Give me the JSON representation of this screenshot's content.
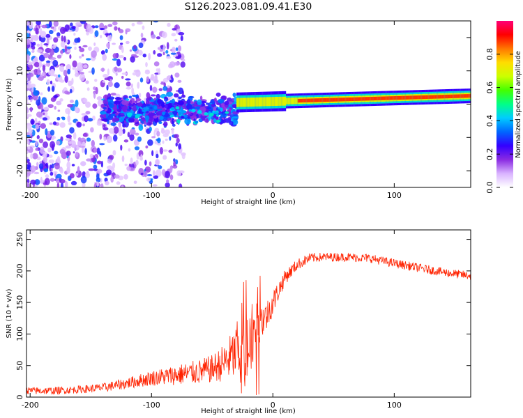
{
  "figure_title": "S126.2023.081.09.41.E30",
  "chart_data": [
    {
      "type": "heatmap",
      "title": "S126.2023.081.09.41.E30",
      "xlabel": "Height of straight line (km)",
      "ylabel": "Frequency (Hz)",
      "xlim": [
        -203,
        163
      ],
      "ylim": [
        -25,
        25
      ],
      "x_ticks": [
        -200,
        -100,
        0,
        100
      ],
      "y_ticks": [
        -20,
        -10,
        0,
        10,
        20
      ],
      "x_tick_labels": [
        "-200",
        "-100",
        "0",
        "100"
      ],
      "y_tick_labels": [
        "-20",
        "-10",
        "0",
        "10",
        "20"
      ],
      "colorbar": {
        "label": "Normalized spectral amplitude",
        "range": [
          0,
          1
        ],
        "ticks": [
          0,
          0.2,
          0.4,
          0.6,
          0.8
        ],
        "tick_labels": [
          "0.0",
          "0.2",
          "0.4",
          "0.6",
          "0.8"
        ],
        "colors": [
          "#ffffff",
          "#d9b3ff",
          "#8a2be2",
          "#3300ff",
          "#0066ff",
          "#00ccff",
          "#00ff88",
          "#44ff00",
          "#ccff00",
          "#ffdd00",
          "#ff7700",
          "#ff0000",
          "#ff0077"
        ]
      },
      "features": [
        {
          "description": "scattered low-amplitude noise",
          "x_range": [
            -203,
            -120
          ],
          "y_range": [
            -25,
            25
          ]
        },
        {
          "description": "turbulent blob cluster",
          "x_range": [
            -140,
            -30
          ],
          "y_range": [
            -15,
            8
          ]
        },
        {
          "description": "narrow signal ridge",
          "x_range": [
            -30,
            163
          ],
          "center_freq_start": 0.5,
          "center_freq_end": 2.5
        }
      ]
    },
    {
      "type": "line",
      "xlabel": "Height of straight line (km)",
      "ylabel": "SNR (10 * v/v)",
      "xlim": [
        -203,
        163
      ],
      "ylim": [
        0,
        265
      ],
      "x_ticks": [
        -200,
        -100,
        0,
        100
      ],
      "y_ticks": [
        0,
        50,
        100,
        150,
        200,
        250
      ],
      "x_tick_labels": [
        "-200",
        "-100",
        "0",
        "100"
      ],
      "y_tick_labels": [
        "0",
        "50",
        "100",
        "150",
        "200",
        "250"
      ],
      "series": [
        {
          "name": "SNR",
          "color": "#ff2200",
          "x": [
            -203,
            -180,
            -160,
            -140,
            -120,
            -100,
            -80,
            -60,
            -50,
            -40,
            -30,
            -25,
            -20,
            -15,
            -10,
            -5,
            0,
            10,
            20,
            30,
            40,
            60,
            80,
            100,
            120,
            140,
            163
          ],
          "y": [
            10,
            10,
            12,
            15,
            22,
            30,
            35,
            40,
            45,
            55,
            70,
            90,
            85,
            110,
            120,
            130,
            150,
            190,
            210,
            220,
            222,
            222,
            220,
            212,
            205,
            198,
            192
          ],
          "noise_amplitude": [
            6,
            6,
            6,
            7,
            9,
            12,
            16,
            20,
            22,
            30,
            45,
            70,
            80,
            40,
            30,
            25,
            20,
            12,
            9,
            8,
            7,
            7,
            7,
            7,
            7,
            7,
            7
          ]
        }
      ]
    }
  ]
}
